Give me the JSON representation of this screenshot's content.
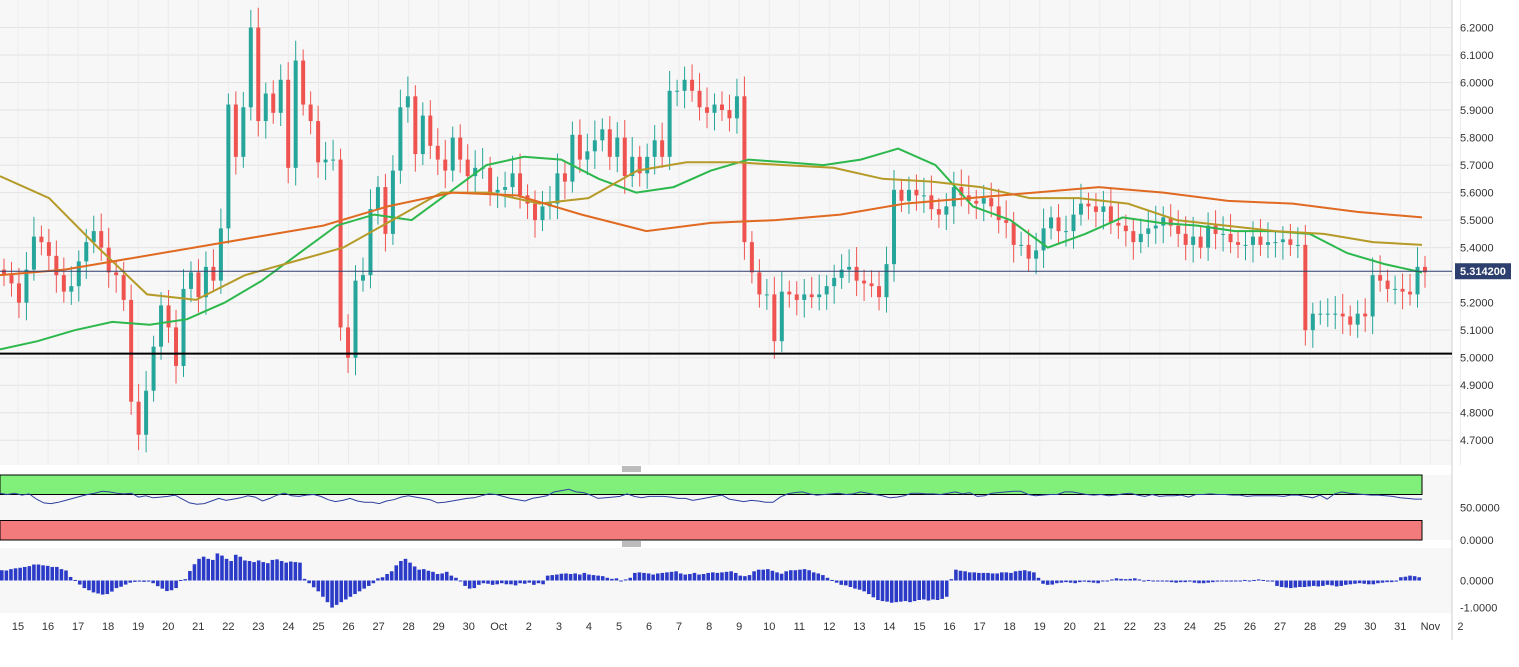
{
  "chart_data": [
    {
      "type": "candlestick",
      "panel": "price",
      "ylim": [
        4.61,
        6.3
      ],
      "y_ticks": [
        "6.2000",
        "6.1000",
        "6.0000",
        "5.9000",
        "5.8000",
        "5.7000",
        "5.6000",
        "5.5000",
        "5.4000",
        "5.3000",
        "5.2000",
        "5.1000",
        "5.0000",
        "4.9000",
        "4.8000",
        "4.7000"
      ],
      "last_price": "5.314200",
      "support_level": 5.015,
      "x_tick_labels": [
        "15",
        "16",
        "17",
        "18",
        "19",
        "20",
        "21",
        "22",
        "23",
        "24",
        "25",
        "26",
        "27",
        "28",
        "29",
        "30",
        "Oct",
        "2",
        "3",
        "4",
        "5",
        "6",
        "7",
        "8",
        "9",
        "10",
        "11",
        "12",
        "13",
        "14",
        "15",
        "16",
        "17",
        "18",
        "19",
        "20",
        "21",
        "22",
        "23",
        "24",
        "25",
        "26",
        "27",
        "28",
        "29",
        "30",
        "31",
        "Nov",
        "2"
      ],
      "closes": [
        5.3,
        5.27,
        5.2,
        5.32,
        5.44,
        5.42,
        5.37,
        5.3,
        5.24,
        5.26,
        5.35,
        5.42,
        5.46,
        5.4,
        5.31,
        5.3,
        5.21,
        4.84,
        4.72,
        4.88,
        5.04,
        5.19,
        5.11,
        4.97,
        5.25,
        5.31,
        5.22,
        5.33,
        5.28,
        5.47,
        5.92,
        5.73,
        5.91,
        6.2,
        5.86,
        5.96,
        5.89,
        6.01,
        5.69,
        6.08,
        5.92,
        5.86,
        5.71,
        5.72,
        5.72,
        5.11,
        5.0,
        5.28,
        5.3,
        5.54,
        5.62,
        5.45,
        5.68,
        5.91,
        5.95,
        5.74,
        5.88,
        5.77,
        5.72,
        5.68,
        5.8,
        5.72,
        5.66,
        5.69,
        5.69,
        5.6,
        5.61,
        5.62,
        5.67,
        5.59,
        5.56,
        5.5,
        5.55,
        5.56,
        5.67,
        5.64,
        5.81,
        5.72,
        5.75,
        5.79,
        5.83,
        5.73,
        5.8,
        5.66,
        5.73,
        5.67,
        5.73,
        5.79,
        5.73,
        5.97,
        5.97,
        6.01,
        5.97,
        5.91,
        5.89,
        5.92,
        5.9,
        5.87,
        5.95,
        5.42,
        5.31,
        5.23,
        5.23,
        5.06,
        5.24,
        5.23,
        5.21,
        5.23,
        5.22,
        5.23,
        5.26,
        5.29,
        5.32,
        5.33,
        5.28,
        5.27,
        5.26,
        5.22,
        5.34,
        5.61,
        5.57,
        5.61,
        5.59,
        5.59,
        5.54,
        5.52,
        5.55,
        5.62,
        5.59,
        5.57,
        5.56,
        5.58,
        5.55,
        5.5,
        5.49,
        5.41,
        5.41,
        5.36,
        5.39,
        5.47,
        5.51,
        5.46,
        5.46,
        5.52,
        5.56,
        5.55,
        5.53,
        5.55,
        5.49,
        5.48,
        5.46,
        5.42,
        5.45,
        5.47,
        5.48,
        5.51,
        5.48,
        5.45,
        5.41,
        5.44,
        5.4,
        5.48,
        5.45,
        5.45,
        5.42,
        5.41,
        5.41,
        5.44,
        5.41,
        5.42,
        5.42,
        5.43,
        5.41,
        5.41,
        5.1,
        5.16,
        5.16,
        5.16,
        5.16,
        5.15,
        5.12,
        5.16,
        5.15,
        5.3,
        5.28,
        5.25,
        5.25,
        5.24,
        5.23,
        5.33,
        5.31
      ],
      "moving_averages": [
        {
          "color": "#2db84d",
          "values": [
            5.03,
            5.06,
            5.1,
            5.13,
            5.12,
            5.14,
            5.2,
            5.28,
            5.38,
            5.48,
            5.52,
            5.5,
            5.6,
            5.7,
            5.73,
            5.72,
            5.65,
            5.6,
            5.62,
            5.68,
            5.72,
            5.71,
            5.7,
            5.72,
            5.76,
            5.7,
            5.55,
            5.5,
            5.4,
            5.45,
            5.51,
            5.49,
            5.48,
            5.46,
            5.46,
            5.45,
            5.38,
            5.34,
            5.31
          ]
        },
        {
          "color": "#b59a28",
          "values": [
            5.66,
            5.58,
            5.4,
            5.23,
            5.21,
            5.3,
            5.35,
            5.4,
            5.5,
            5.6,
            5.6,
            5.56,
            5.58,
            5.68,
            5.71,
            5.71,
            5.7,
            5.69,
            5.65,
            5.64,
            5.62,
            5.58,
            5.58,
            5.56,
            5.5,
            5.48,
            5.46,
            5.45,
            5.42,
            5.41
          ]
        },
        {
          "color": "#e06a22",
          "values": [
            5.3,
            5.32,
            5.36,
            5.4,
            5.44,
            5.48,
            5.55,
            5.6,
            5.59,
            5.52,
            5.46,
            5.49,
            5.5,
            5.52,
            5.56,
            5.58,
            5.6,
            5.62,
            5.6,
            5.57,
            5.56,
            5.53,
            5.51
          ]
        }
      ]
    },
    {
      "type": "line",
      "panel": "oscillator",
      "y_ticks": [
        "50.0000",
        "0.0000"
      ],
      "ylim": [
        0,
        100
      ],
      "upper_band": 70,
      "lower_band": 30,
      "values": [
        72,
        70,
        72,
        69,
        71,
        63,
        57,
        56,
        58,
        61,
        64,
        67,
        70,
        72,
        75,
        74,
        72,
        71,
        72,
        66,
        68,
        65,
        66,
        67,
        69,
        63,
        57,
        55,
        56,
        60,
        64,
        61,
        63,
        65,
        68,
        66,
        60,
        64,
        69,
        72,
        68,
        67,
        69,
        70,
        67,
        62,
        59,
        61,
        64,
        60,
        58,
        58,
        56,
        60,
        62,
        66,
        68,
        66,
        64,
        62,
        57,
        58,
        60,
        62,
        64,
        65,
        68,
        71,
        70,
        67,
        64,
        62,
        60,
        64,
        66,
        68,
        74,
        76,
        78,
        74,
        73,
        69,
        64,
        65,
        66,
        67,
        71,
        67,
        65,
        67,
        67,
        67,
        66,
        64,
        64,
        61,
        63,
        65,
        67,
        69,
        63,
        61,
        59,
        61,
        60,
        58,
        58,
        66,
        71,
        73,
        74,
        71,
        69,
        70,
        71,
        72,
        70,
        71,
        74,
        72,
        70,
        68,
        65,
        66,
        68,
        72,
        72,
        71,
        71,
        70,
        72,
        74,
        71,
        73,
        67,
        68,
        72,
        73,
        74,
        75,
        75,
        70,
        68,
        69,
        70,
        70,
        74,
        74,
        72,
        70,
        69,
        70,
        68,
        69,
        71,
        72,
        69,
        67,
        70,
        67,
        68,
        68,
        69,
        66,
        70,
        70,
        71,
        70,
        70,
        69,
        69,
        67,
        68,
        68,
        68,
        68,
        67,
        69,
        69,
        67,
        65,
        69,
        63,
        71,
        74,
        72,
        71,
        70,
        69,
        69,
        68,
        67,
        65,
        64,
        63,
        63
      ]
    },
    {
      "type": "bar",
      "panel": "histogram",
      "y_ticks": [
        "0.0000",
        "-1.0000"
      ],
      "ylim": [
        -1.2,
        1.2
      ],
      "values": [
        0.38,
        0.37,
        0.42,
        0.45,
        0.47,
        0.5,
        0.53,
        0.59,
        0.59,
        0.56,
        0.54,
        0.5,
        0.5,
        0.42,
        0.37,
        0.13,
        0.02,
        -0.15,
        -0.28,
        -0.36,
        -0.44,
        -0.48,
        -0.52,
        -0.5,
        -0.41,
        -0.28,
        -0.23,
        -0.15,
        -0.08,
        -0.05,
        -0.04,
        -0.05,
        -0.04,
        -0.1,
        -0.21,
        -0.3,
        -0.39,
        -0.36,
        -0.28,
        0.02,
        0.05,
        0.35,
        0.6,
        0.8,
        0.88,
        0.8,
        0.76,
        1.0,
        0.92,
        0.8,
        0.72,
        0.95,
        0.88,
        0.74,
        0.72,
        0.68,
        0.74,
        0.68,
        0.64,
        0.76,
        0.78,
        0.72,
        0.66,
        0.7,
        0.68,
        0.66,
        0.06,
        -0.1,
        -0.25,
        -0.4,
        -0.6,
        -0.8,
        -1.0,
        -0.9,
        -0.8,
        -0.7,
        -0.6,
        -0.5,
        -0.4,
        -0.3,
        -0.2,
        -0.1,
        0.08,
        0.12,
        0.24,
        0.34,
        0.56,
        0.72,
        0.8,
        0.66,
        0.52,
        0.4,
        0.42,
        0.36,
        0.32,
        0.24,
        0.26,
        0.32,
        0.18,
        0.1,
        0.0,
        -0.2,
        -0.3,
        -0.28,
        -0.16,
        -0.1,
        -0.12,
        -0.16,
        -0.14,
        -0.1,
        -0.14,
        -0.14,
        -0.18,
        -0.1,
        -0.12,
        -0.08,
        -0.16,
        -0.1,
        -0.14,
        0.18,
        0.2,
        0.22,
        0.25,
        0.26,
        0.24,
        0.26,
        0.22,
        0.28,
        0.22,
        0.2,
        0.18,
        0.16,
        0.1,
        0.06,
        0.08,
        0.0,
        0.04,
        0.1,
        0.28,
        0.3,
        0.28,
        0.26,
        0.22,
        0.26,
        0.28,
        0.3,
        0.32,
        0.34,
        0.26,
        0.22,
        0.24,
        0.28,
        0.22,
        0.24,
        0.28,
        0.3,
        0.28,
        0.3,
        0.32,
        0.34,
        0.28,
        0.18,
        0.16,
        0.2,
        0.34,
        0.4,
        0.4,
        0.42,
        0.36,
        0.3,
        0.25,
        0.34,
        0.38,
        0.38,
        0.4,
        0.42,
        0.38,
        0.3,
        0.26,
        0.2,
        0.1,
        0.02,
        -0.08,
        -0.16,
        -0.18,
        -0.24,
        -0.3,
        -0.34,
        -0.4,
        -0.5,
        -0.62,
        -0.72,
        -0.76,
        -0.78,
        -0.82,
        -0.8,
        -0.78,
        -0.76,
        -0.8,
        -0.76,
        -0.72,
        -0.7,
        -0.74,
        -0.7,
        -0.72,
        -0.68,
        -0.6,
        0.05,
        0.4,
        0.36,
        0.34,
        0.3,
        0.3,
        0.28,
        0.28,
        0.28,
        0.26,
        0.26,
        0.3,
        0.3,
        0.28,
        0.34,
        0.36,
        0.38,
        0.34,
        0.3,
        0.1,
        -0.12,
        -0.16,
        -0.15,
        -0.1,
        -0.08,
        -0.06,
        -0.08,
        -0.1,
        -0.06,
        -0.04,
        -0.06,
        -0.08,
        -0.1,
        -0.02,
        0.0,
        0.04,
        0.08,
        0.06,
        0.05,
        0.06,
        0.08,
        0.04,
        0.0,
        0.02,
        -0.02,
        0.0,
        0.0,
        -0.04,
        -0.06,
        -0.08,
        -0.06,
        -0.06,
        -0.04,
        -0.08,
        -0.1,
        -0.1,
        -0.08,
        -0.06,
        -0.04,
        -0.02,
        -0.04,
        -0.04,
        -0.02,
        0.0,
        0.02,
        0.0,
        0.02,
        0.04,
        0.02,
        0.0,
        -0.04,
        -0.2,
        -0.24,
        -0.26,
        -0.28,
        -0.26,
        -0.24,
        -0.24,
        -0.22,
        -0.2,
        -0.22,
        -0.2,
        -0.16,
        -0.18,
        -0.22,
        -0.2,
        -0.16,
        -0.14,
        -0.12,
        -0.1,
        -0.12,
        -0.14,
        -0.14,
        -0.1,
        -0.08,
        -0.06,
        -0.06,
        -0.04,
        0.12,
        0.14,
        0.18,
        0.16,
        0.12
      ]
    }
  ],
  "colors": {
    "up": "#26a69a",
    "down": "#ef5350",
    "oscillator_line": "#2d3f9e",
    "overbought_zone": "#80f07a",
    "oversold_zone": "#f47b7b",
    "histogram_bar": "#2b3bc7",
    "price_tag": "#2d3f6e"
  }
}
